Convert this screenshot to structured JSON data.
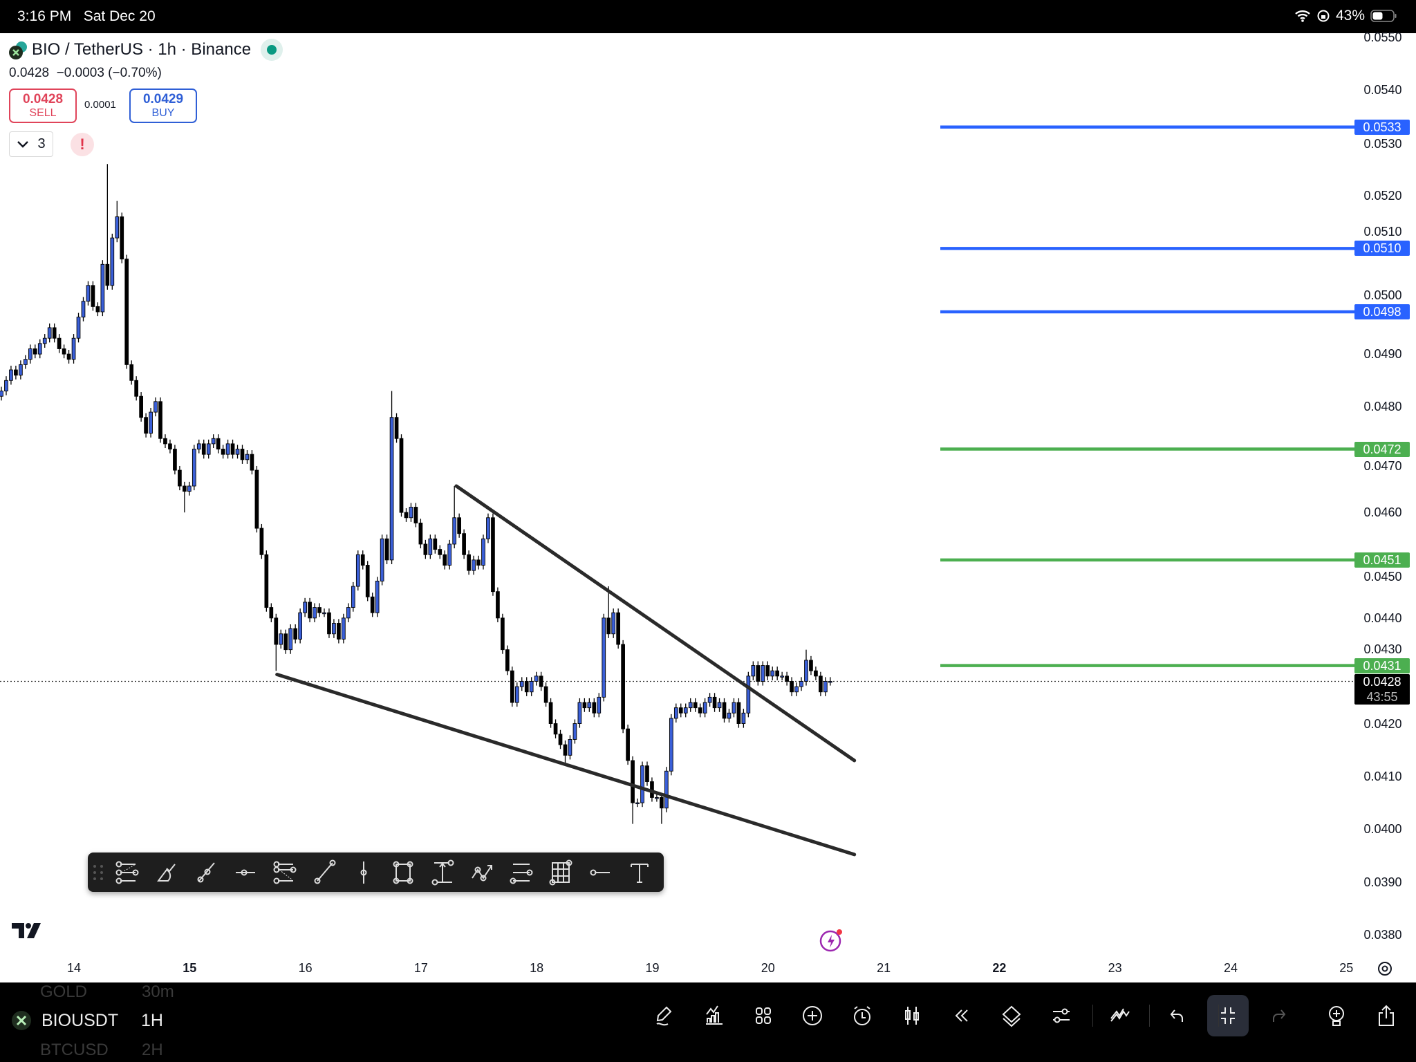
{
  "status_bar": {
    "time": "3:16 PM",
    "date": "Sat Dec 20",
    "battery": "43%"
  },
  "header": {
    "symbol_title": "BIO / TetherUS · 1h · Binance",
    "last": "0.0428",
    "change": "−0.0003 (−0.70%)",
    "sell": {
      "price": "0.0428",
      "label": "SELL"
    },
    "spread": "0.0001",
    "buy": {
      "price": "0.0429",
      "label": "BUY"
    },
    "indicators_count": "3",
    "market_status_color": "#089981"
  },
  "colors": {
    "up": "#3a5fd8",
    "down": "#000000",
    "level_blue": "#2962ff",
    "level_green": "#4caf50",
    "trendline": "#2a2a2a"
  },
  "chart_data": {
    "type": "candlestick",
    "interval": "1h",
    "y_ticks": [
      "0.0550",
      "0.0540",
      "0.0530",
      "0.0520",
      "0.0510",
      "0.0500",
      "0.0490",
      "0.0480",
      "0.0470",
      "0.0460",
      "0.0450",
      "0.0440",
      "0.0430",
      "0.0420",
      "0.0410",
      "0.0400",
      "0.0390",
      "0.0380"
    ],
    "ylim": [
      0.038,
      0.055
    ],
    "x_ticks": [
      {
        "label": "14",
        "bold": false
      },
      {
        "label": "15",
        "bold": true
      },
      {
        "label": "16",
        "bold": false
      },
      {
        "label": "17",
        "bold": false
      },
      {
        "label": "18",
        "bold": false
      },
      {
        "label": "19",
        "bold": false
      },
      {
        "label": "20",
        "bold": false
      },
      {
        "label": "21",
        "bold": false
      },
      {
        "label": "22",
        "bold": true
      },
      {
        "label": "23",
        "bold": false
      },
      {
        "label": "24",
        "bold": false
      },
      {
        "label": "25",
        "bold": false
      }
    ],
    "first_open": 0.0482,
    "closes": [
      0.0483,
      0.0485,
      0.0487,
      0.0486,
      0.0488,
      0.0489,
      0.0491,
      0.049,
      0.0492,
      0.0493,
      0.0495,
      0.0493,
      0.0491,
      0.049,
      0.0489,
      0.0493,
      0.0497,
      0.05,
      0.0503,
      0.0499,
      0.0498,
      0.0507,
      0.0503,
      0.0512,
      0.0516,
      0.0508,
      0.0488,
      0.0485,
      0.0482,
      0.0478,
      0.0475,
      0.0479,
      0.0481,
      0.0474,
      0.0473,
      0.0472,
      0.0468,
      0.0465,
      0.0464,
      0.0465,
      0.0472,
      0.0473,
      0.0471,
      0.0473,
      0.0474,
      0.0472,
      0.0471,
      0.0473,
      0.0471,
      0.0472,
      0.047,
      0.0471,
      0.0468,
      0.0457,
      0.0452,
      0.0442,
      0.044,
      0.0435,
      0.0437,
      0.0434,
      0.0438,
      0.0436,
      0.0441,
      0.0443,
      0.044,
      0.0442,
      0.0441,
      0.0441,
      0.0437,
      0.0439,
      0.0436,
      0.044,
      0.0442,
      0.0446,
      0.0452,
      0.045,
      0.0444,
      0.0441,
      0.0447,
      0.0455,
      0.0451,
      0.0478,
      0.0474,
      0.046,
      0.0459,
      0.0461,
      0.0458,
      0.0454,
      0.0452,
      0.0455,
      0.0453,
      0.0452,
      0.045,
      0.0454,
      0.0459,
      0.0456,
      0.0452,
      0.0449,
      0.0451,
      0.045,
      0.0455,
      0.0459,
      0.0445,
      0.044,
      0.0434,
      0.043,
      0.0424,
      0.0427,
      0.0428,
      0.0426,
      0.0428,
      0.0429,
      0.0427,
      0.0424,
      0.042,
      0.0418,
      0.0416,
      0.0414,
      0.0417,
      0.042,
      0.0424,
      0.0423,
      0.0424,
      0.0422,
      0.0425,
      0.044,
      0.0437,
      0.0441,
      0.0435,
      0.0419,
      0.0413,
      0.0405,
      0.0405,
      0.0412,
      0.0409,
      0.0406,
      0.0406,
      0.0404,
      0.0411,
      0.0421,
      0.0423,
      0.0422,
      0.0423,
      0.0424,
      0.0423,
      0.0422,
      0.0424,
      0.0425,
      0.0423,
      0.0424,
      0.0421,
      0.0422,
      0.0424,
      0.042,
      0.0422,
      0.0429,
      0.0431,
      0.0428,
      0.0431,
      0.0429,
      0.043,
      0.0429,
      0.0429,
      0.0428,
      0.0426,
      0.0427,
      0.0428,
      0.0432,
      0.043,
      0.0429,
      0.0426,
      0.0428,
      0.0428
    ],
    "wick_highs": {
      "22": 0.0526,
      "24": 0.0519,
      "81": 0.0483,
      "94": 0.0465,
      "126": 0.0446,
      "167": 0.0434
    },
    "wick_lows": {
      "38": 0.046,
      "57": 0.043,
      "117": 0.0412,
      "131": 0.0401,
      "137": 0.0401
    },
    "trendlines": [
      {
        "from": [
          94.4,
          0.0465
        ],
        "to": [
          177,
          0.0413
        ]
      },
      {
        "from": [
          57.2,
          0.04293
        ],
        "to": [
          177,
          0.03952
        ]
      }
    ],
    "levels": [
      {
        "price": "0.0533",
        "color": "blue"
      },
      {
        "price": "0.0510",
        "color": "blue"
      },
      {
        "price": "0.0498",
        "color": "blue"
      },
      {
        "price": "0.0472",
        "color": "green"
      },
      {
        "price": "0.0451",
        "color": "green"
      },
      {
        "price": "0.0431",
        "color": "green"
      }
    ],
    "last_price": {
      "price": "0.0428",
      "countdown": "43:55"
    }
  },
  "drawing_toolbar": [
    "fib-retracement",
    "brush",
    "trend-line",
    "horizontal-ray",
    "fib-extension",
    "ray",
    "vertical-line",
    "rectangle",
    "price-range",
    "path",
    "parallel-lines",
    "gann-box",
    "horizontal-line",
    "text"
  ],
  "bottom_bar": {
    "symbol": "BIOUSDT",
    "interval": "1H",
    "ghost_prev": {
      "symbol": "GOLD",
      "interval": "30m"
    },
    "ghost_next": {
      "symbol": "BTCUSD",
      "interval": "2H"
    },
    "icons": [
      "drawing-icon",
      "indicators-icon",
      "layouts-icon",
      "add-icon",
      "alert-icon",
      "chart-type-icon",
      "replay-icon",
      "layers-icon",
      "settings-sliders-icon",
      "ideas-icon",
      "undo-icon",
      "collapse-icon",
      "redo-icon",
      "idea-bulb-icon",
      "share-icon"
    ]
  }
}
